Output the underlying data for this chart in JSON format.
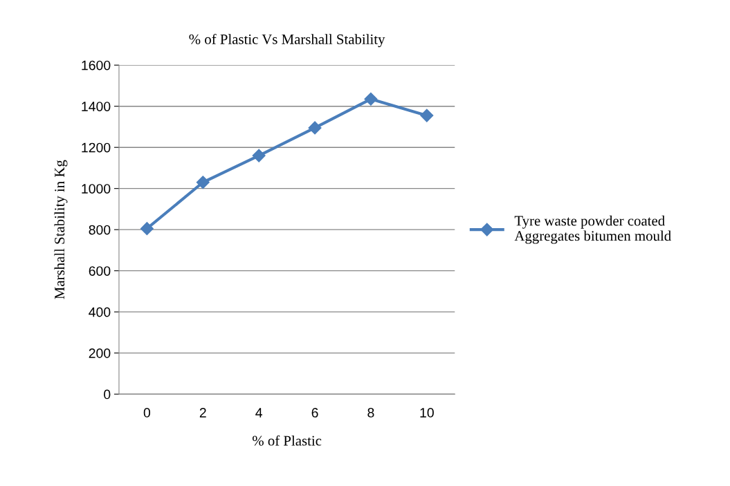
{
  "chart_data": {
    "type": "line",
    "title": "% of Plastic Vs Marshall Stability",
    "xlabel": "% of Plastic",
    "ylabel": "Marshall Stability in Kg",
    "categories": [
      "0",
      "2",
      "4",
      "6",
      "8",
      "10"
    ],
    "series": [
      {
        "name": "Tyre waste powder coated Aggregates bitumen mould",
        "color": "#4a7ebb",
        "values": [
          805,
          1030,
          1160,
          1295,
          1435,
          1355
        ]
      }
    ],
    "ylim": [
      0,
      1600
    ],
    "yticks": [
      0,
      200,
      400,
      600,
      800,
      1000,
      1200,
      1400,
      1600
    ],
    "grid": "y",
    "legend": "right",
    "marker": "diamond",
    "line_style": "solid"
  }
}
